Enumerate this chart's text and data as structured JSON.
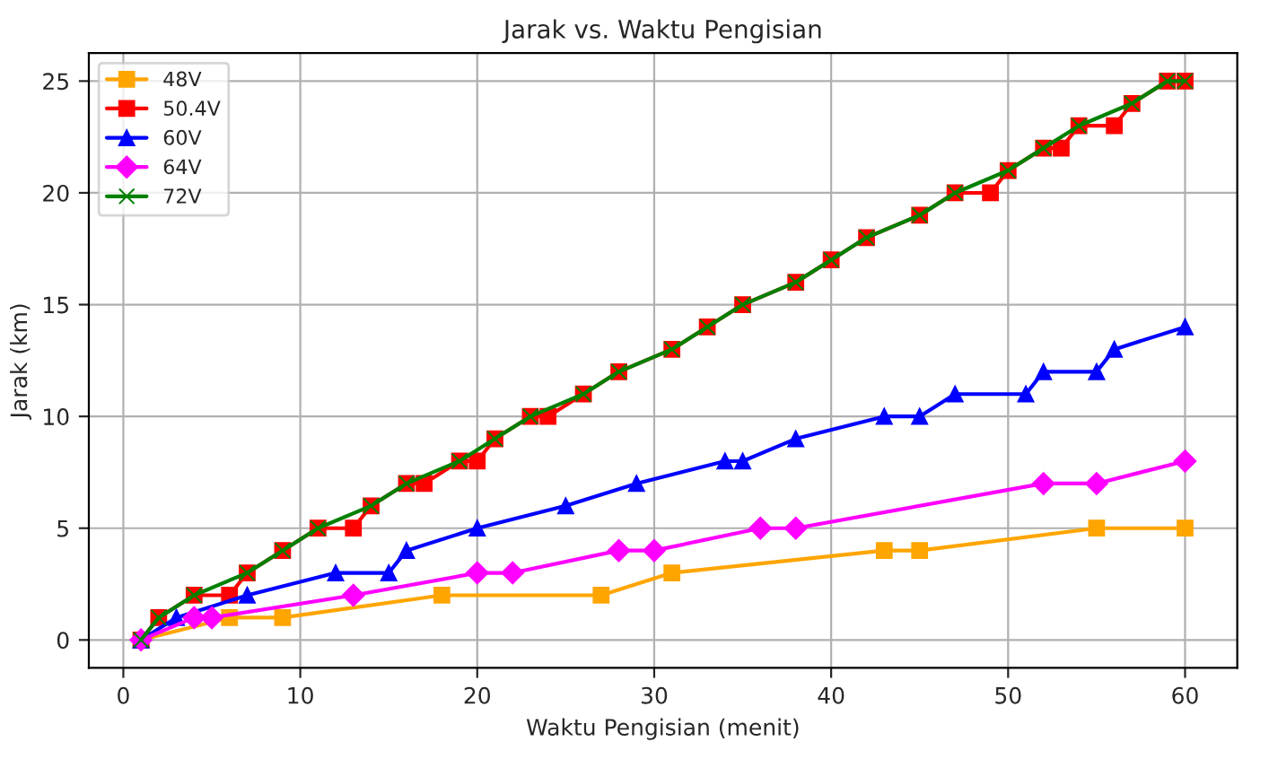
{
  "chart_data": {
    "type": "line",
    "title": "Jarak vs. Waktu Pengisian",
    "xlabel": "Waktu Pengisian (menit)",
    "ylabel": "Jarak (km)",
    "xlim": [
      -1.95,
      62.95
    ],
    "ylim": [
      -1.25,
      26.25
    ],
    "xticks": [
      0,
      10,
      20,
      30,
      40,
      50,
      60
    ],
    "yticks": [
      0,
      5,
      10,
      15,
      20,
      25
    ],
    "grid": true,
    "legend": "top left",
    "series": [
      {
        "name": "48V",
        "color": "#ffa500",
        "marker": "square",
        "x": [
          1,
          6,
          9,
          18,
          27,
          31,
          43,
          45,
          55,
          60
        ],
        "values": [
          0,
          1,
          1,
          2,
          2,
          3,
          4,
          4,
          5,
          5
        ]
      },
      {
        "name": "50.4V",
        "color": "#ff0000",
        "marker": "square",
        "x": [
          1,
          2,
          4,
          6,
          7,
          9,
          11,
          13,
          14,
          16,
          17,
          19,
          20,
          21,
          23,
          24,
          26,
          28,
          31,
          33,
          35,
          38,
          40,
          42,
          45,
          47,
          49,
          50,
          52,
          53,
          54,
          56,
          57,
          59,
          60
        ],
        "values": [
          0,
          1,
          2,
          2,
          3,
          4,
          5,
          5,
          6,
          7,
          7,
          8,
          8,
          9,
          10,
          10,
          11,
          12,
          13,
          14,
          15,
          16,
          17,
          18,
          19,
          20,
          20,
          21,
          22,
          22,
          23,
          23,
          24,
          25,
          25
        ]
      },
      {
        "name": "60V",
        "color": "#0000ff",
        "marker": "triangle",
        "x": [
          1,
          3,
          7,
          12,
          15,
          16,
          20,
          25,
          29,
          34,
          35,
          38,
          43,
          45,
          47,
          51,
          52,
          55,
          56,
          60
        ],
        "values": [
          0,
          1,
          2,
          3,
          3,
          4,
          5,
          6,
          7,
          8,
          8,
          9,
          10,
          10,
          11,
          11,
          12,
          12,
          13,
          14
        ]
      },
      {
        "name": "64V",
        "color": "#ff00ff",
        "marker": "diamond",
        "x": [
          1,
          4,
          5,
          13,
          20,
          22,
          28,
          30,
          36,
          38,
          52,
          55,
          60
        ],
        "values": [
          0,
          1,
          1,
          2,
          3,
          3,
          4,
          4,
          5,
          5,
          7,
          7,
          8
        ]
      },
      {
        "name": "72V",
        "color": "#008000",
        "marker": "cross",
        "x": [
          1,
          2,
          4,
          7,
          9,
          11,
          14,
          16,
          19,
          21,
          23,
          26,
          28,
          31,
          33,
          35,
          38,
          40,
          42,
          45,
          47,
          50,
          52,
          54,
          57,
          59,
          60
        ],
        "values": [
          0,
          1,
          2,
          3,
          4,
          5,
          6,
          7,
          8,
          9,
          10,
          11,
          12,
          13,
          14,
          15,
          16,
          17,
          18,
          19,
          20,
          21,
          22,
          23,
          24,
          25,
          25
        ]
      }
    ]
  }
}
